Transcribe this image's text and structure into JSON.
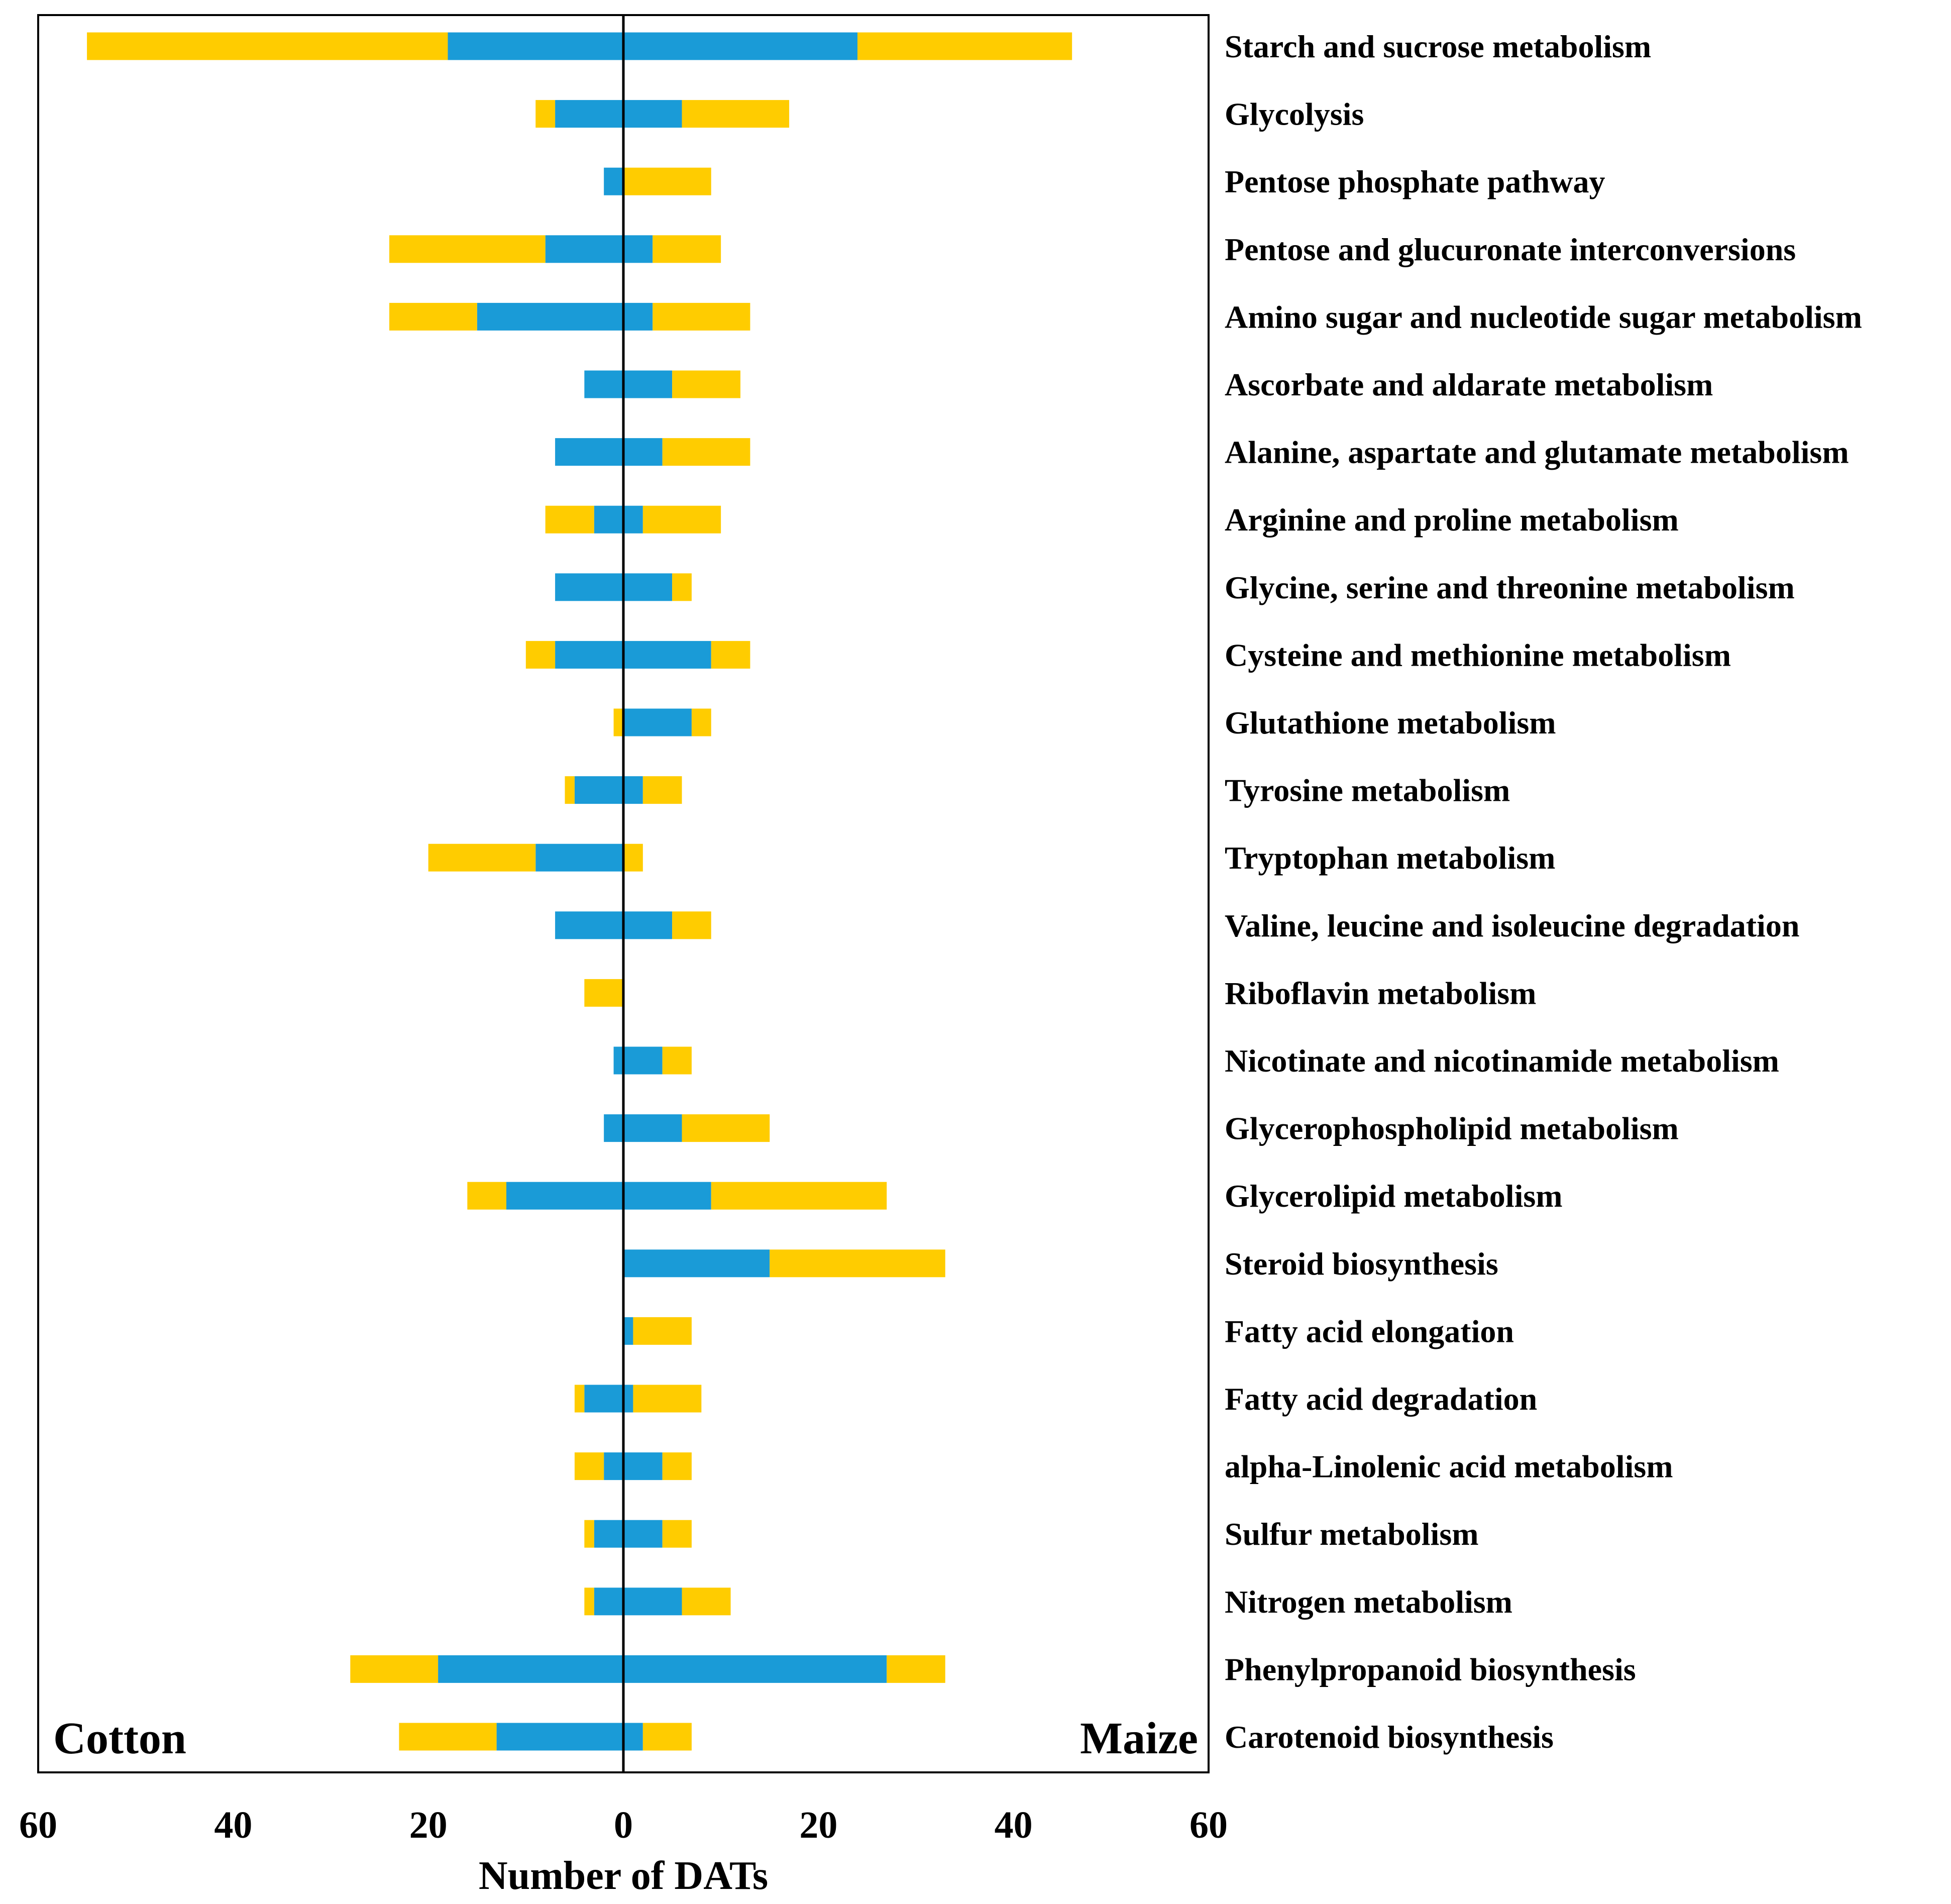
{
  "chart_data": {
    "type": "bar",
    "orientation": "horizontal-diverging-stacked",
    "title": "",
    "xlabel": "Number of DATs",
    "ylabel": "",
    "xlim": [
      -60,
      60
    ],
    "x_ticks": [
      -60,
      -40,
      -20,
      0,
      20,
      40,
      60
    ],
    "x_tick_labels": [
      "60",
      "40",
      "20",
      "0",
      "20",
      "40",
      "60"
    ],
    "left_side_label": "Cotton",
    "right_side_label": "Maize",
    "colors": {
      "inner": "#1a9bd7",
      "outer": "#ffcc00",
      "axis": "#000000"
    },
    "categories": [
      "Starch and sucrose metabolism",
      "Glycolysis",
      "Pentose phosphate pathway",
      "Pentose and glucuronate interconversions",
      "Amino sugar and nucleotide sugar metabolism",
      "Ascorbate and aldarate metabolism",
      "Alanine, aspartate and glutamate metabolism",
      "Arginine and proline metabolism",
      "Glycine, serine and threonine metabolism",
      "Cysteine and methionine metabolism",
      "Glutathione metabolism",
      "Tyrosine metabolism",
      "Tryptophan metabolism",
      "Valine, leucine and isoleucine degradation",
      "Riboflavin metabolism",
      "Nicotinate and nicotinamide metabolism",
      "Glycerophospholipid metabolism",
      "Glycerolipid metabolism",
      "Steroid biosynthesis",
      "Fatty acid elongation",
      "Fatty acid degradation",
      "alpha-Linolenic acid metabolism",
      "Sulfur metabolism",
      "Nitrogen metabolism",
      "Phenylpropanoid biosynthesis",
      "Carotenoid biosynthesis"
    ],
    "series": [
      {
        "name": "Cotton (blue segment)",
        "side": "left",
        "color": "#1a9bd7",
        "values": [
          18,
          7,
          2,
          8,
          15,
          4,
          7,
          3,
          7,
          7,
          0,
          5,
          9,
          7,
          0,
          1,
          2,
          12,
          0,
          0,
          4,
          2,
          3,
          3,
          19,
          13
        ]
      },
      {
        "name": "Cotton (yellow segment)",
        "side": "left",
        "color": "#ffcc00",
        "values": [
          37,
          2,
          0,
          16,
          9,
          0,
          0,
          5,
          0,
          3,
          1,
          1,
          11,
          0,
          4,
          0,
          0,
          4,
          0,
          0,
          1,
          3,
          1,
          1,
          9,
          10
        ]
      },
      {
        "name": "Maize (blue segment)",
        "side": "right",
        "color": "#1a9bd7",
        "values": [
          24,
          6,
          0,
          3,
          3,
          5,
          4,
          2,
          5,
          9,
          7,
          2,
          0,
          5,
          0,
          4,
          6,
          9,
          15,
          1,
          1,
          4,
          4,
          6,
          27,
          2
        ]
      },
      {
        "name": "Maize (yellow segment)",
        "side": "right",
        "color": "#ffcc00",
        "values": [
          22,
          11,
          9,
          7,
          10,
          7,
          9,
          8,
          2,
          4,
          2,
          4,
          2,
          4,
          0,
          3,
          9,
          18,
          18,
          6,
          7,
          3,
          3,
          5,
          6,
          5
        ]
      }
    ]
  }
}
